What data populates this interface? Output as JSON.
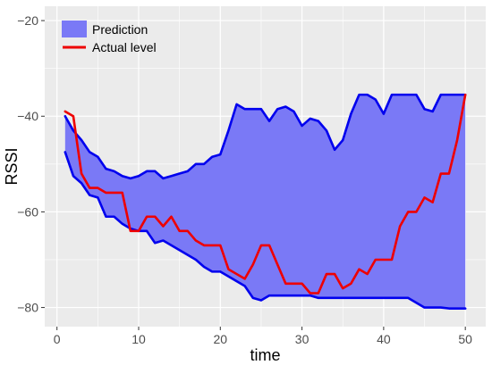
{
  "chart_data": {
    "type": "area",
    "title": "",
    "xlabel": "time",
    "ylabel": "RSSI",
    "xlim": [
      -1.5,
      52.5
    ],
    "ylim": [
      -84,
      -17
    ],
    "xticks": [
      0,
      10,
      20,
      30,
      40,
      50
    ],
    "yticks": [
      -80,
      -60,
      -40,
      -20
    ],
    "grid": true,
    "legend_position": "top-left",
    "colors": {
      "panel_bg": "#EBEBEB",
      "grid_major": "#FFFFFF",
      "band_fill": "#7A79F6",
      "band_edge": "#0000EE",
      "actual_line": "#EE0000"
    },
    "x": [
      1,
      2,
      3,
      4,
      5,
      6,
      7,
      8,
      9,
      10,
      11,
      12,
      13,
      14,
      15,
      16,
      17,
      18,
      19,
      20,
      21,
      22,
      23,
      24,
      25,
      26,
      27,
      28,
      29,
      30,
      31,
      32,
      33,
      34,
      35,
      36,
      37,
      38,
      39,
      40,
      41,
      42,
      43,
      44,
      45,
      46,
      47,
      48,
      49,
      50
    ],
    "series": [
      {
        "name": "Prediction",
        "kind": "band",
        "upper": [
          -40,
          -43,
          -45,
          -47.5,
          -48.5,
          -51,
          -51.5,
          -52.5,
          -53,
          -52.5,
          -51.5,
          -51.5,
          -53,
          -52.5,
          -52,
          -51.5,
          -50,
          -50,
          -48.5,
          -48,
          -43,
          -37.5,
          -38.5,
          -38.5,
          -38.5,
          -41,
          -38.5,
          -38,
          -39,
          -42,
          -40.5,
          -41,
          -43,
          -47,
          -45,
          -39.5,
          -35.5,
          -35.5,
          -36.5,
          -39.5,
          -35.5,
          -35.5,
          -35.5,
          -35.5,
          -38.5,
          -39,
          -35.5,
          -35.5,
          -35.5,
          -35.5
        ],
        "lower": [
          -47.5,
          -52.5,
          -54,
          -56.5,
          -57,
          -61,
          -61,
          -62.5,
          -63.5,
          -64,
          -64,
          -66.5,
          -66,
          -67,
          -68,
          -69,
          -70,
          -71.5,
          -72.5,
          -72.5,
          -73.5,
          -74.5,
          -75.5,
          -78,
          -78.5,
          -77.5,
          -77.5,
          -77.5,
          -77.5,
          -77.5,
          -77.5,
          -78,
          -78,
          -78,
          -78,
          -78,
          -78,
          -78,
          -78,
          -78,
          -78,
          -78,
          -78,
          -79,
          -80,
          -80,
          -80,
          -80.2,
          -80.2,
          -80.2
        ]
      },
      {
        "name": "Actual level",
        "kind": "line",
        "values": [
          -39,
          -40,
          -52,
          -55,
          -55,
          -56,
          -56,
          -56,
          -64,
          -64,
          -61,
          -61,
          -63,
          -61,
          -64,
          -64,
          -66,
          -67,
          -67,
          -67,
          -72,
          -73,
          -74,
          -71,
          -67,
          -67,
          -71,
          -75,
          -75,
          -75,
          -77,
          -77,
          -73,
          -73,
          -76,
          -75,
          -72,
          -73,
          -70,
          -70,
          -70,
          -63,
          -60,
          -60,
          -57,
          -58,
          -52,
          -52,
          -45,
          -35.5
        ]
      }
    ]
  }
}
